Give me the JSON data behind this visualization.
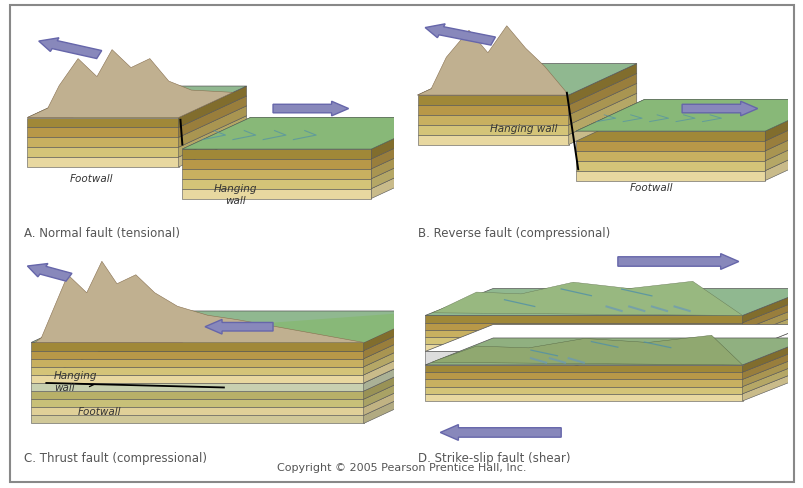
{
  "copyright": "Copyright © 2005 Pearson Prentice Hall, Inc.",
  "labels": {
    "A": "A. Normal fault (tensional)",
    "B": "B. Reverse fault (compressional)",
    "C": "C. Thrust fault (compressional)",
    "D": "D. Strike-slip fault (shear)"
  },
  "bg_color": "#ffffff",
  "border_color": "#888888",
  "layer_colors": [
    "#e8d8a0",
    "#d4c478",
    "#c8b060",
    "#b89848",
    "#a08838"
  ],
  "top_color": "#a8c8a0",
  "side_color_dark": "#c8b060",
  "arrow_color": "#8888bb",
  "arrow_edge": "#6666aa",
  "label_color": "#333333",
  "copyright_color": "#555555",
  "font_size_label": 8.5,
  "font_size_panel": 8.0,
  "font_size_copyright": 8.0
}
